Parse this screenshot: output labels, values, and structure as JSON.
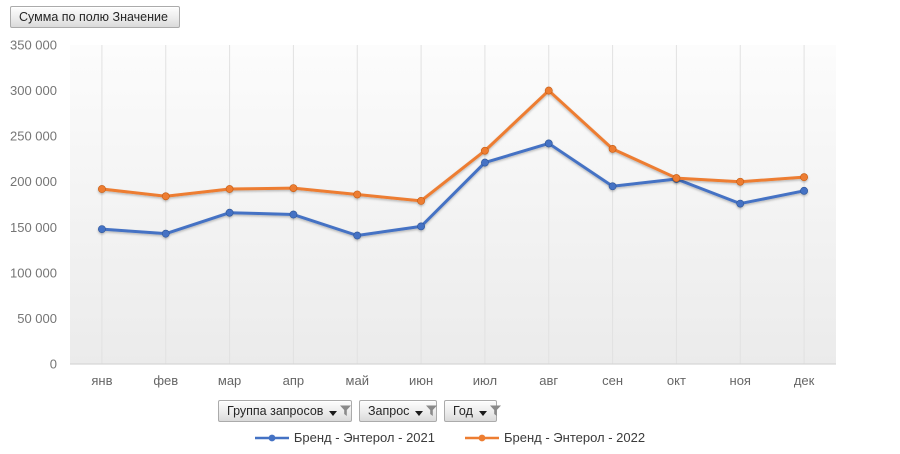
{
  "pivot": {
    "value_field_button": "Сумма по полю Значение",
    "filter_buttons": [
      {
        "label": "Группа запросов"
      },
      {
        "label": "Запрос"
      },
      {
        "label": "Год"
      }
    ]
  },
  "legend": {
    "items": [
      {
        "label": "Бренд - Энтерол - 2021",
        "color": "#4472C4",
        "marker_border": "#2E5596"
      },
      {
        "label": "Бренд - Энтерол - 2022",
        "color": "#ED7D31",
        "marker_border": "#C55A11"
      }
    ]
  },
  "colors": {
    "axis_label": "#757575",
    "category_label": "#666666",
    "gridline": "#e1e1e1",
    "axis_line": "#d6d6d6",
    "plot_fill_top": "#fcfcfc",
    "plot_fill_bottom": "#ebebeb"
  },
  "chart_data": {
    "type": "line",
    "title": "",
    "xlabel": "",
    "ylabel": "",
    "categories": [
      "янв",
      "фев",
      "мар",
      "апр",
      "май",
      "июн",
      "июл",
      "авг",
      "сен",
      "окт",
      "ноя",
      "дек"
    ],
    "series": [
      {
        "name": "Бренд - Энтерол - 2021",
        "color": "#4472C4",
        "marker_border": "#2E5596",
        "values": [
          148000,
          143000,
          166000,
          164000,
          141000,
          151000,
          221000,
          242000,
          195000,
          203000,
          176000,
          190000
        ]
      },
      {
        "name": "Бренд - Энтерол - 2022",
        "color": "#ED7D31",
        "marker_border": "#C55A11",
        "values": [
          192000,
          184000,
          192000,
          193000,
          186000,
          179000,
          234000,
          300000,
          236000,
          204000,
          200000,
          205000
        ]
      }
    ],
    "ylim": [
      0,
      350000
    ],
    "ytick_step": 50000,
    "ytick_labels": [
      "0",
      "50 000",
      "100 000",
      "150 000",
      "200 000",
      "250 000",
      "300 000",
      "350 000"
    ],
    "grid": "vertical-only",
    "legend_position": "bottom",
    "marker": "circle"
  }
}
